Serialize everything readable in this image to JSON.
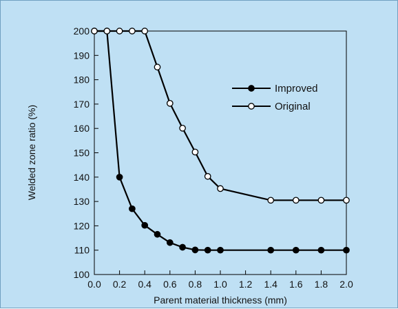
{
  "chart_data": {
    "type": "line",
    "title": "",
    "xlabel": "Parent material thickness (mm)",
    "ylabel": "Welded zone ratio (%)",
    "xlim": [
      0,
      2.0
    ],
    "ylim": [
      100,
      200
    ],
    "xticks": [
      "0.0",
      "0.2",
      "0.4",
      "0.6",
      "0.8",
      "1.0",
      "1.2",
      "1.4",
      "1.6",
      "1.8",
      "2.0"
    ],
    "yticks": [
      "100",
      "110",
      "120",
      "130",
      "140",
      "150",
      "160",
      "170",
      "180",
      "190",
      "200"
    ],
    "grid": false,
    "legend_position": "right",
    "series": [
      {
        "name": "Improved",
        "marker": "filled-circle",
        "color": "#000000",
        "points": [
          [
            0.0,
            200
          ],
          [
            0.1,
            200
          ],
          [
            0.2,
            140
          ],
          [
            0.3,
            127
          ],
          [
            0.4,
            120.2
          ],
          [
            0.5,
            116.5
          ],
          [
            0.6,
            113.1
          ],
          [
            0.7,
            111.2
          ],
          [
            0.8,
            110.1
          ],
          [
            0.9,
            110
          ],
          [
            1.0,
            110
          ],
          [
            1.4,
            110
          ],
          [
            1.6,
            110
          ],
          [
            1.8,
            110
          ],
          [
            2.0,
            110
          ]
        ]
      },
      {
        "name": "Original",
        "marker": "open-circle",
        "color": "#000000",
        "points": [
          [
            0.0,
            200
          ],
          [
            0.1,
            200
          ],
          [
            0.2,
            200
          ],
          [
            0.3,
            200
          ],
          [
            0.4,
            200
          ],
          [
            0.5,
            185.2
          ],
          [
            0.6,
            170.3
          ],
          [
            0.7,
            160.1
          ],
          [
            0.8,
            150.3
          ],
          [
            0.9,
            140.3
          ],
          [
            1.0,
            135.3
          ],
          [
            1.4,
            130.5
          ],
          [
            1.6,
            130.5
          ],
          [
            1.8,
            130.5
          ],
          [
            2.0,
            130.5
          ]
        ]
      }
    ]
  }
}
